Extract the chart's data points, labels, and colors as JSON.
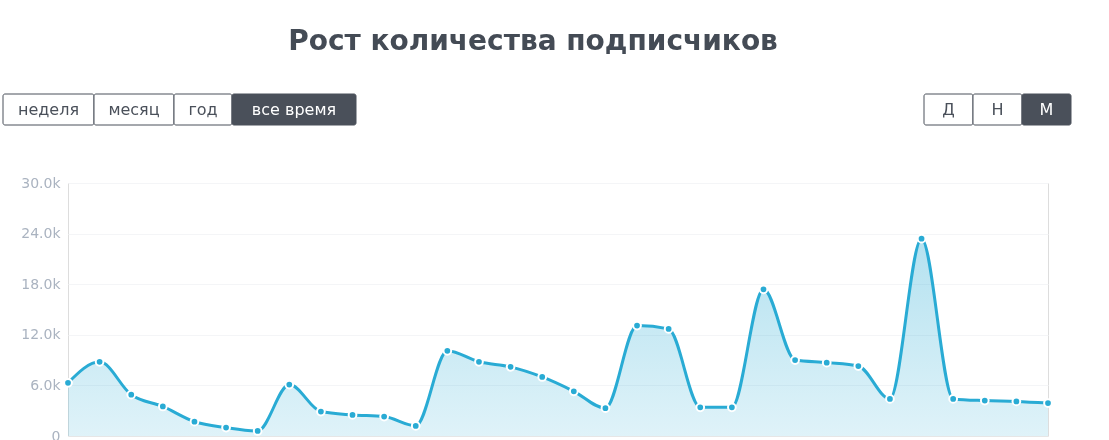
{
  "chart_data": {
    "type": "area",
    "title": "Рост количества подписчиков",
    "annotations": [
      "неделя",
      "месяц",
      "год",
      "все время",
      "Д",
      "Н",
      "М"
    ],
    "categories": [
      null,
      null,
      null,
      null,
      null,
      null,
      null,
      null,
      null,
      null,
      null,
      null,
      null,
      null,
      null,
      null,
      null,
      null,
      null,
      null,
      null,
      null,
      null,
      null,
      null,
      null,
      null,
      null,
      null,
      null,
      null,
      null
    ],
    "series": [
      {
        "color": "#29abd4",
        "values": [
          6300,
          8800,
          4900,
          3500,
          1700,
          1000,
          600,
          6100,
          2900,
          2500,
          2300,
          1200,
          10100,
          8800,
          8200,
          7000,
          5300,
          3300,
          13100,
          12700,
          3400,
          3400,
          17400,
          9000,
          8700,
          8300,
          4400,
          23400,
          4400,
          4200,
          4100,
          3900
        ]
      }
    ],
    "ylim": [
      0,
      30000
    ],
    "yticks": [
      {
        "value": 0,
        "label": "0"
      },
      {
        "value": 6000,
        "label": "6.0k"
      },
      {
        "value": 12000,
        "label": "12.0k"
      },
      {
        "value": 18000,
        "label": "18.0k"
      },
      {
        "value": 24000,
        "label": "24.0k"
      },
      {
        "value": 30000,
        "label": "30.0k"
      }
    ],
    "grid": "y",
    "marker": "circle",
    "tick_labels": "y"
  }
}
